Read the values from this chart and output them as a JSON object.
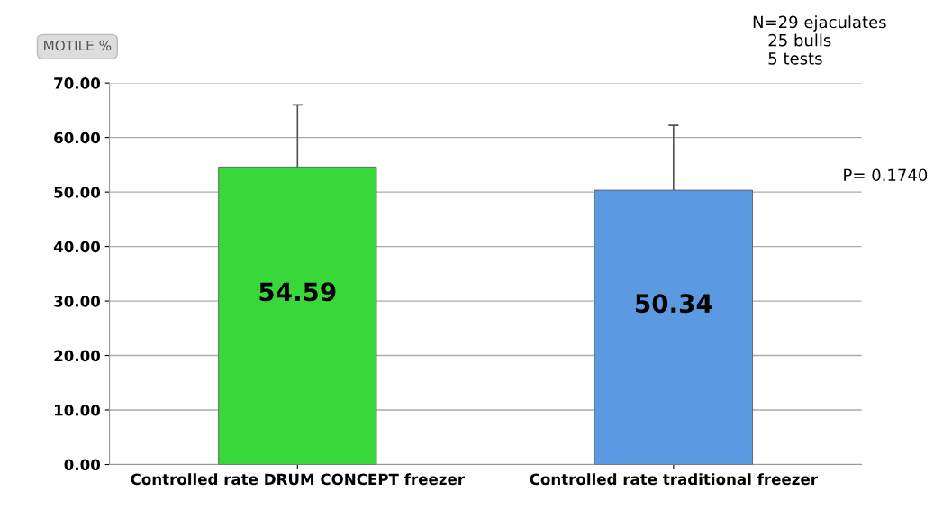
{
  "chart_data": {
    "type": "bar",
    "ylabel": "MOTILE %",
    "categories": [
      "Controlled rate DRUM CONCEPT freezer",
      "Controlled rate traditional freezer"
    ],
    "values": [
      54.59,
      50.34
    ],
    "colors": [
      "#38d83a",
      "#5b9ae0"
    ],
    "errors": [
      11.4,
      11.9
    ],
    "data_labels": true,
    "ylim": [
      0,
      70
    ],
    "yticks": [
      {
        "value": 0,
        "label": "0.00"
      },
      {
        "value": 10,
        "label": "10.00"
      },
      {
        "value": 20,
        "label": "20.00"
      },
      {
        "value": 30,
        "label": "30.00"
      },
      {
        "value": 40,
        "label": "40.00"
      },
      {
        "value": 50,
        "label": "50.00"
      },
      {
        "value": 60,
        "label": "60.00"
      },
      {
        "value": 70,
        "label": "70.00"
      }
    ],
    "grid": "y",
    "annotations": [
      "N=29 ejaculates\n   25 bulls\n   5 tests",
      "P= 0.1740"
    ]
  }
}
